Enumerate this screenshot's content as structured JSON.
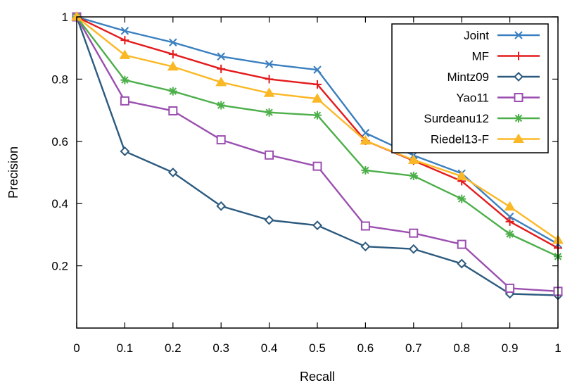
{
  "chart_data": {
    "type": "line",
    "xlabel": "Recall",
    "ylabel": "Precision",
    "xlim": [
      0,
      1
    ],
    "ylim": [
      0,
      1
    ],
    "xticks": [
      0,
      0.1,
      0.2,
      0.3,
      0.4,
      0.5,
      0.6,
      0.7,
      0.8,
      0.9,
      1
    ],
    "xtick_labels": [
      "0",
      "0.1",
      "0.2",
      "0.3",
      "0.4",
      "0.5",
      "0.6",
      "0.7",
      "0.8",
      "0.9",
      "1"
    ],
    "yticks": [
      0.2,
      0.4,
      0.6,
      0.8,
      1
    ],
    "ytick_labels": [
      "0.2",
      "0.4",
      "0.6",
      "0.8",
      "1"
    ],
    "grid": false,
    "legend_position": "top-right",
    "x": [
      0,
      0.1,
      0.2,
      0.3,
      0.4,
      0.5,
      0.6,
      0.7,
      0.8,
      0.9,
      1
    ],
    "series": [
      {
        "name": "Joint",
        "color": "#3a7fbf",
        "marker": "x",
        "values": [
          1.0,
          0.955,
          0.918,
          0.873,
          0.848,
          0.83,
          0.627,
          0.555,
          0.497,
          0.358,
          0.27
        ]
      },
      {
        "name": "MF",
        "color": "#e41a1c",
        "marker": "plus",
        "values": [
          1.0,
          0.925,
          0.88,
          0.833,
          0.8,
          0.783,
          0.602,
          0.538,
          0.472,
          0.342,
          0.257
        ]
      },
      {
        "name": "Mintz09",
        "color": "#2c5a7e",
        "marker": "diamond",
        "values": [
          1.0,
          0.568,
          0.5,
          0.392,
          0.347,
          0.33,
          0.262,
          0.254,
          0.207,
          0.11,
          0.105
        ]
      },
      {
        "name": "Yao11",
        "color": "#9b4fb0",
        "marker": "square",
        "values": [
          1.0,
          0.73,
          0.698,
          0.605,
          0.556,
          0.52,
          0.328,
          0.305,
          0.269,
          0.128,
          0.118
        ]
      },
      {
        "name": "Surdeanu12",
        "color": "#4daf4a",
        "marker": "star",
        "values": [
          1.0,
          0.797,
          0.761,
          0.716,
          0.693,
          0.684,
          0.507,
          0.489,
          0.415,
          0.302,
          0.23
        ]
      },
      {
        "name": "Riedel13-F",
        "color": "#fbb826",
        "marker": "triangle",
        "values": [
          1.0,
          0.877,
          0.84,
          0.79,
          0.755,
          0.737,
          0.602,
          0.54,
          0.488,
          0.39,
          0.283
        ]
      }
    ]
  }
}
